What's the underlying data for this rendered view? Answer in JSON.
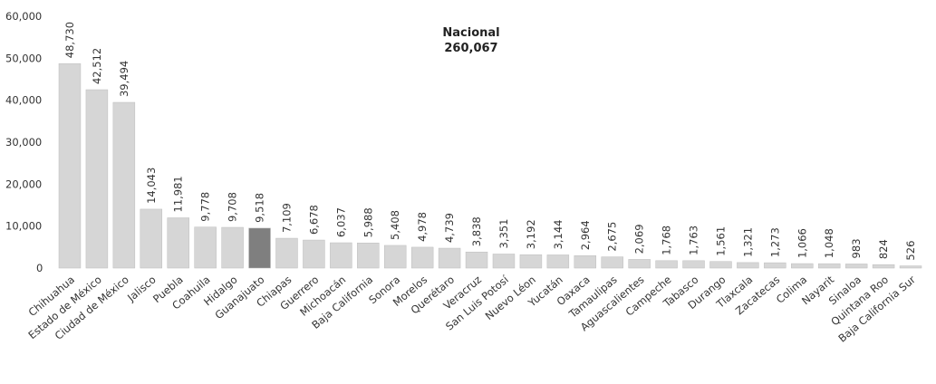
{
  "chart_data": {
    "type": "bar",
    "title": "Nacional",
    "subtitle": "260,067",
    "categories": [
      "Chihuahua",
      "Estado de México",
      "Ciudad de México",
      "Jalisco",
      "Puebla",
      "Coahuila",
      "Hidalgo",
      "Guanajuato",
      "Chiapas",
      "Guerrero",
      "Michoacán",
      "Baja California",
      "Sonora",
      "Morelos",
      "Querétaro",
      "Veracruz",
      "San Luis Potosí",
      "Nuevo Léon",
      "Yucatán",
      "Oaxaca",
      "Tamaulipas",
      "Aguascalientes",
      "Campeche",
      "Tabasco",
      "Durango",
      "Tlaxcala",
      "Zacatecas",
      "Colima",
      "Nayarit",
      "Sinaloa",
      "Quintana Roo",
      "Baja California Sur"
    ],
    "values": [
      48730,
      42512,
      39494,
      14043,
      11981,
      9778,
      9708,
      9518,
      7109,
      6678,
      6037,
      5988,
      5408,
      4978,
      4739,
      3838,
      3351,
      3192,
      3144,
      2964,
      2675,
      2069,
      1768,
      1763,
      1561,
      1321,
      1273,
      1066,
      1048,
      983,
      824,
      526
    ],
    "value_labels": [
      "48,730",
      "42,512",
      "39,494",
      "14,043",
      "11,981",
      "9,778",
      "9,708",
      "9,518",
      "7,109",
      "6,678",
      "6,037",
      "5,988",
      "5,408",
      "4,978",
      "4,739",
      "3,838",
      "3,351",
      "3,192",
      "3,144",
      "2,964",
      "2,675",
      "2,069",
      "1,768",
      "1,763",
      "1,561",
      "1,321",
      "1,273",
      "1,066",
      "1,048",
      "983",
      "824",
      "526"
    ],
    "colors": [
      "#d6d6d6",
      "#d6d6d6",
      "#d6d6d6",
      "#d6d6d6",
      "#d6d6d6",
      "#d6d6d6",
      "#d6d6d6",
      "#7f7f7f",
      "#d6d6d6",
      "#d6d6d6",
      "#d6d6d6",
      "#d6d6d6",
      "#d6d6d6",
      "#d6d6d6",
      "#d6d6d6",
      "#d6d6d6",
      "#d6d6d6",
      "#d6d6d6",
      "#d6d6d6",
      "#d6d6d6",
      "#d6d6d6",
      "#d6d6d6",
      "#d6d6d6",
      "#d6d6d6",
      "#d6d6d6",
      "#d6d6d6",
      "#d6d6d6",
      "#d6d6d6",
      "#d6d6d6",
      "#d6d6d6",
      "#d6d6d6",
      "#d6d6d6"
    ],
    "ylim": [
      0,
      60000
    ],
    "yticks": [
      0,
      {
        "value": 10000,
        "label": "10,000"
      },
      {
        "value": 20000,
        "label": "20,000"
      },
      {
        "value": 30000,
        "label": "30,000"
      },
      {
        "value": 40000,
        "label": "40,000"
      },
      {
        "value": 50000,
        "label": "50,000"
      },
      {
        "value": 60000,
        "label": "60,000"
      }
    ],
    "grid": false
  }
}
